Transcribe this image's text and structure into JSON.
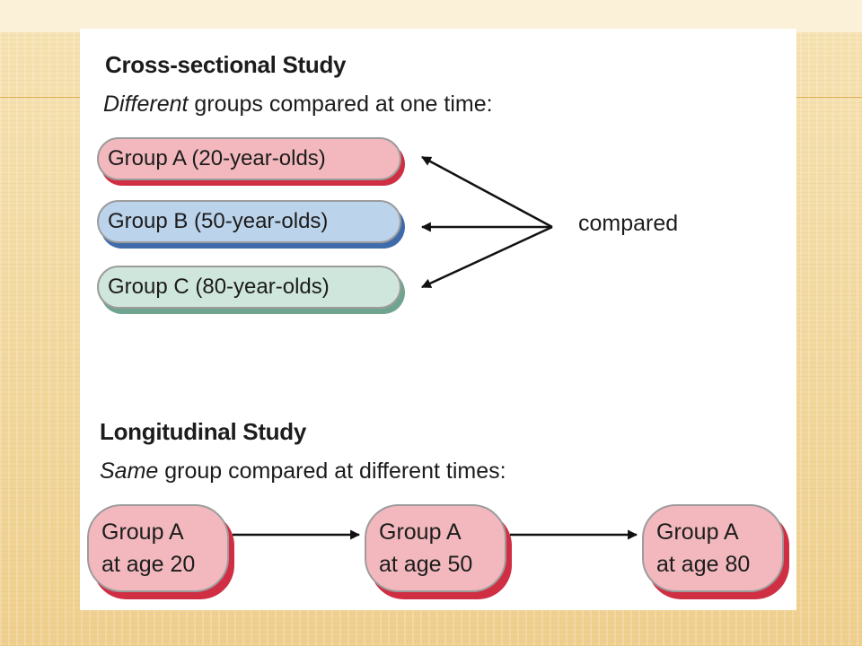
{
  "cross_sectional": {
    "title": "Cross-sectional Study",
    "subtitle_emphasis": "Different",
    "subtitle_rest": " groups compared at one time:",
    "groups": [
      {
        "label": "Group A (20-year-olds)",
        "fill": "#f2b8bd",
        "shadow": "#cf2e43"
      },
      {
        "label": "Group B (50-year-olds)",
        "fill": "#bcd3ec",
        "shadow": "#3f6bab"
      },
      {
        "label": "Group C (80-year-olds)",
        "fill": "#cfe6dc",
        "shadow": "#6fa58f"
      }
    ],
    "connector_label": "compared"
  },
  "longitudinal": {
    "title": "Longitudinal Study",
    "subtitle_emphasis": "Same",
    "subtitle_rest": " group compared at different times:",
    "stages": [
      {
        "line1": "Group A",
        "line2": "at age 20"
      },
      {
        "line1": "Group A",
        "line2": "at age 50"
      },
      {
        "line1": "Group A",
        "line2": "at age 80"
      }
    ],
    "fill": "#f2b8bd",
    "shadow": "#cf2e43"
  }
}
